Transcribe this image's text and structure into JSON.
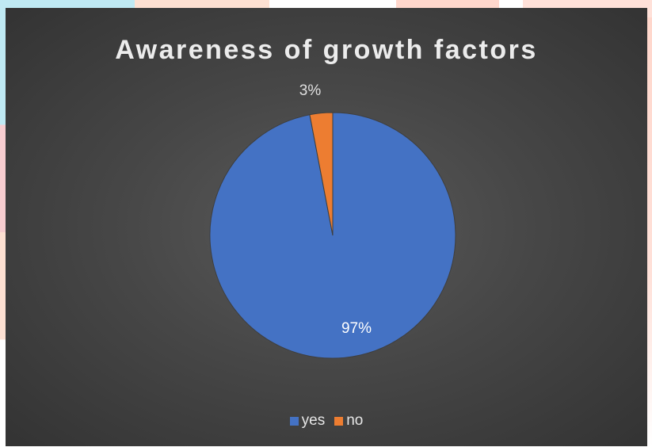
{
  "chart_data": {
    "type": "pie",
    "title": "Awareness of growth factors",
    "categories": [
      "yes",
      "no"
    ],
    "values": [
      97,
      3
    ],
    "data_labels": [
      "97%",
      "3%"
    ],
    "colors": [
      "#4472c4",
      "#ed7d31"
    ],
    "legend_position": "bottom",
    "start_angle": "top, clockwise"
  }
}
